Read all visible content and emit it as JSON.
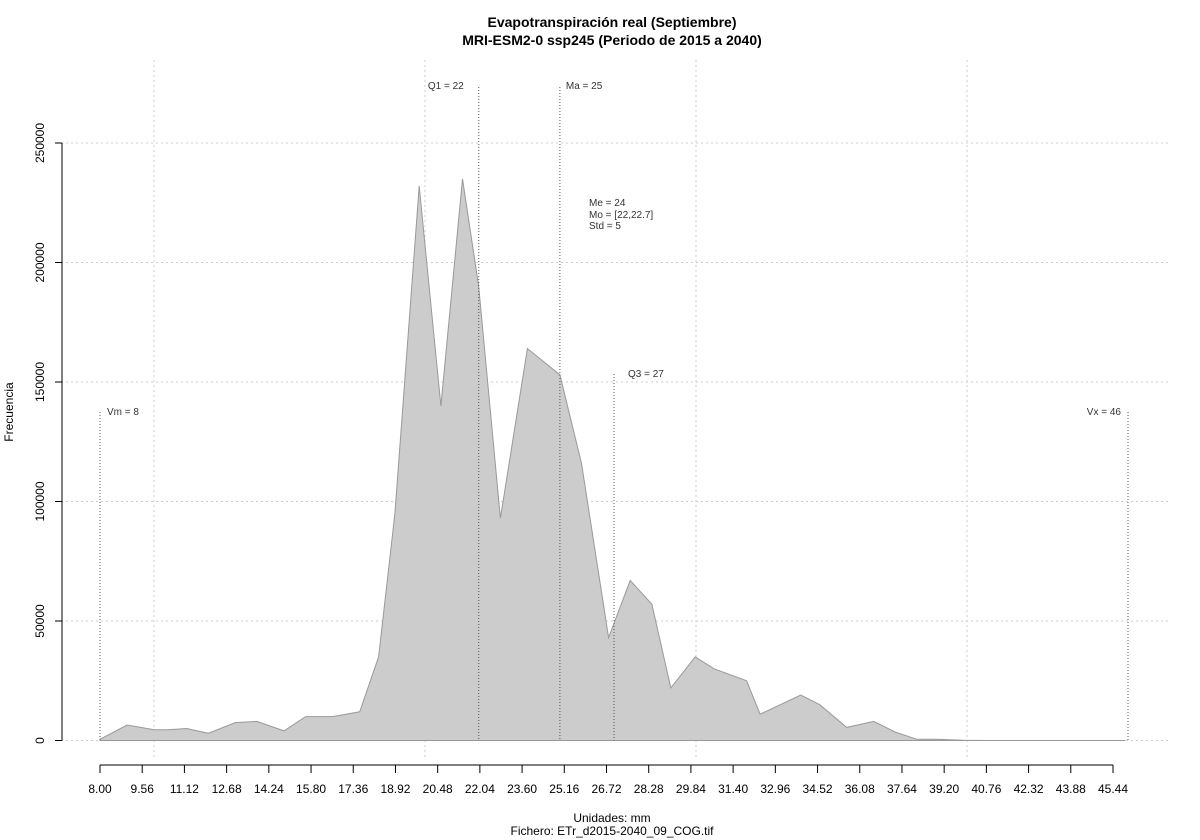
{
  "chart_data": {
    "type": "area",
    "title": "Evapotranspiración real (Septiembre)",
    "subtitle": "MRI-ESM2-0 ssp245 (Periodo de 2015 a 2040)",
    "xlabel": "Unidades: mm",
    "footer": "Fichero: ETr_d2015-2040_09_COG.tif",
    "ylabel": "Frecuencia",
    "xlim": [
      8.0,
      46.0
    ],
    "ylim": [
      0,
      250000
    ],
    "grid": true,
    "fill_color": "#cccccc",
    "line_color": "#999999",
    "x_tick_labels": [
      "8.00",
      "9.56",
      "11.12",
      "12.68",
      "14.24",
      "15.80",
      "17.36",
      "18.92",
      "20.48",
      "22.04",
      "23.60",
      "25.16",
      "26.72",
      "28.28",
      "29.84",
      "31.40",
      "32.96",
      "34.52",
      "36.08",
      "37.64",
      "39.20",
      "40.76",
      "42.32",
      "43.88",
      "45.44"
    ],
    "y_tick_labels": [
      "0",
      "50000",
      "100000",
      "150000",
      "200000",
      "250000"
    ],
    "y_ticks": [
      0,
      50000,
      100000,
      150000,
      200000,
      250000
    ],
    "x": [
      8.0,
      9.0,
      10.0,
      10.5,
      11.2,
      12.0,
      13.0,
      13.8,
      14.8,
      15.6,
      16.6,
      17.6,
      18.3,
      18.9,
      19.8,
      20.6,
      21.4,
      22.0,
      22.8,
      23.8,
      25.0,
      25.8,
      26.8,
      27.6,
      28.4,
      29.1,
      30.0,
      30.7,
      31.9,
      32.4,
      33.9,
      34.6,
      35.6,
      36.6,
      37.4,
      38.2,
      38.9,
      39.9,
      40.8,
      41.9,
      42.9,
      43.9,
      45.9
    ],
    "y": [
      500,
      6500,
      4500,
      4500,
      5000,
      3000,
      7500,
      8000,
      4000,
      10000,
      10000,
      12000,
      35000,
      95000,
      232000,
      140000,
      235000,
      190000,
      93000,
      164000,
      153000,
      116000,
      43000,
      67000,
      57000,
      22000,
      35000,
      30000,
      25000,
      11000,
      19000,
      15000,
      5500,
      8000,
      3500,
      500,
      500,
      100,
      0,
      0,
      0,
      0,
      0
    ],
    "annotations": [
      {
        "label": "Vm = 8",
        "x": 8.0
      },
      {
        "label": "Q1 = 22",
        "x": 22.0
      },
      {
        "label": "Ma = 25",
        "x": 25.0
      },
      {
        "label": "Q3 = 27",
        "x": 27.0
      },
      {
        "label": "Vx = 46",
        "x": 46.0
      }
    ],
    "stats": [
      "Me = 24",
      "Mo = [22,22.7]",
      "Std = 5"
    ]
  }
}
